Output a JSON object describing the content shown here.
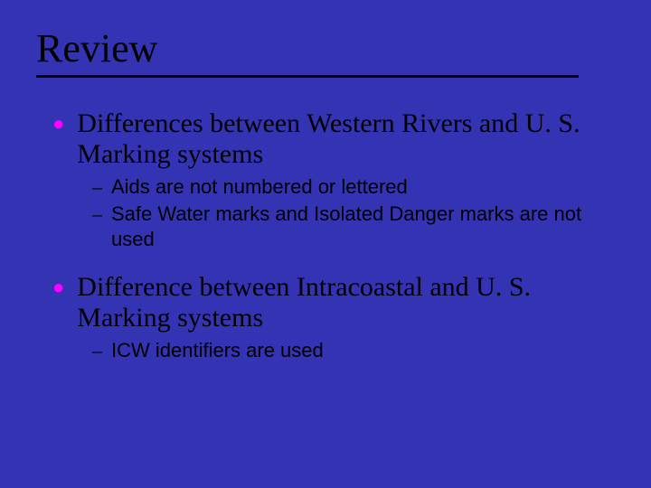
{
  "slide": {
    "title": "Review",
    "background_color": "#3333b3",
    "title_color": "#000000",
    "title_fontsize": 44,
    "underline_color": "#000000",
    "bullet_color_l1": "#ff00ff",
    "text_color": "#000000",
    "body_fontsize_l1": 30,
    "body_fontsize_l2": 22,
    "items": [
      {
        "text": "Differences between Western Rivers and U. S. Marking systems",
        "sub": [
          {
            "text": "Aids are not numbered or lettered"
          },
          {
            "text": "Safe Water marks and Isolated Danger marks are not used"
          }
        ]
      },
      {
        "text": "Difference between Intracoastal and U. S. Marking systems",
        "sub": [
          {
            "text": "ICW identifiers are used"
          }
        ]
      }
    ]
  }
}
